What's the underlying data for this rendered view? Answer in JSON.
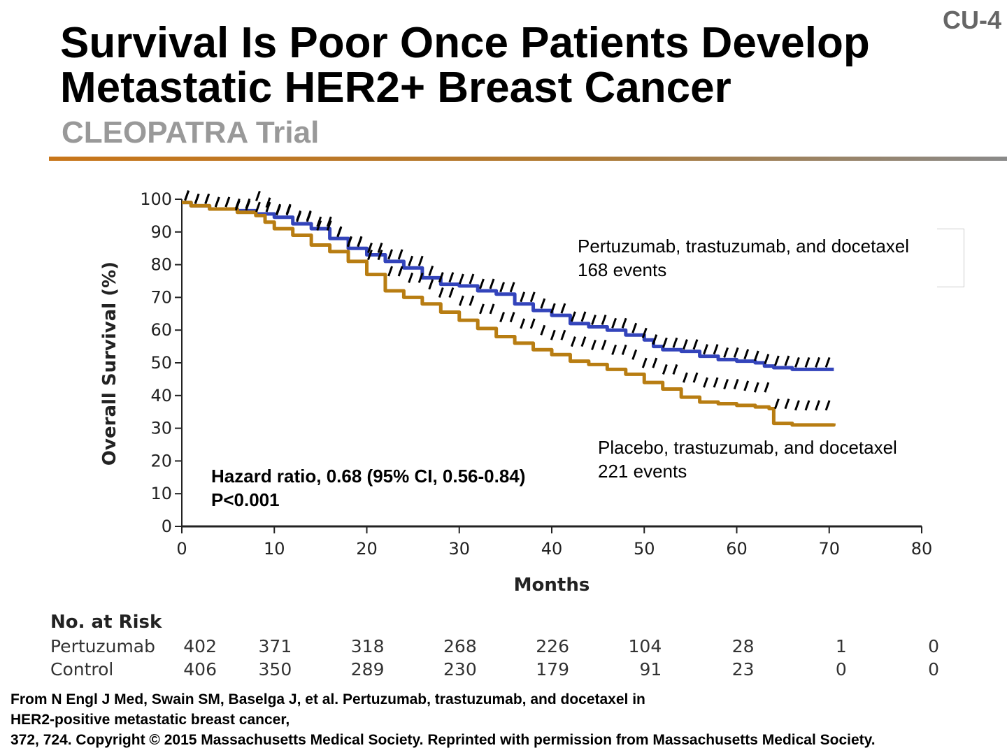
{
  "slide_id": "CU-4",
  "title_lines": [
    "Survival Is Poor Once Patients Develop",
    "Metastatic HER2+ Breast Cancer"
  ],
  "subtitle": "CLEOPATRA Trial",
  "chart_data": {
    "type": "line",
    "xlabel": "Months",
    "ylabel": "Overall Survival (%)",
    "xlim": [
      0,
      80
    ],
    "ylim": [
      0,
      100
    ],
    "x_ticks": [
      0,
      10,
      20,
      30,
      40,
      50,
      60,
      70,
      80
    ],
    "y_ticks": [
      0,
      10,
      20,
      30,
      40,
      50,
      60,
      70,
      80,
      90,
      100
    ],
    "grid": false,
    "series": [
      {
        "label_lines": [
          "Pertuzumab, trastuzumab, and docetaxel",
          "168 events"
        ],
        "color": "#3344bb",
        "x": [
          0,
          1,
          3,
          6,
          8,
          10,
          12,
          14,
          16,
          18,
          20,
          22,
          24,
          26,
          28,
          30,
          32,
          34,
          36,
          38,
          40,
          42,
          44,
          46,
          48,
          50,
          51,
          52,
          54,
          56,
          58,
          60,
          62,
          63,
          64,
          66,
          68,
          70.5
        ],
        "y": [
          99,
          98,
          97,
          96.5,
          95.5,
          94.5,
          92.5,
          91,
          88,
          85,
          83,
          81,
          79,
          76,
          74,
          73.5,
          72,
          71,
          68,
          66,
          64.5,
          62,
          61,
          60,
          58.5,
          57,
          55,
          54,
          53.5,
          52,
          51,
          50.5,
          50,
          49,
          48.5,
          48,
          48,
          48
        ]
      },
      {
        "label_lines": [
          "Placebo, trastuzumab, and docetaxel",
          "221 events"
        ],
        "color": "#b87d12",
        "x": [
          0,
          1,
          3,
          6,
          8,
          9,
          10,
          12,
          14,
          16,
          18,
          20,
          22,
          24,
          26,
          28,
          30,
          32,
          34,
          36,
          38,
          40,
          42,
          44,
          46,
          48,
          50,
          52,
          54,
          56,
          58,
          60,
          62,
          63.5,
          64,
          66,
          68,
          70.5
        ],
        "y": [
          99,
          98,
          97,
          96,
          95,
          93,
          91,
          89,
          86,
          84,
          81,
          77,
          72,
          70,
          68,
          65.5,
          63,
          60.5,
          58,
          56,
          54,
          52.5,
          50.5,
          49.5,
          48,
          46.5,
          44,
          42,
          39.5,
          38,
          37.5,
          37,
          36.5,
          36,
          31.5,
          31,
          31,
          31.5
        ]
      }
    ],
    "annotations": [
      "Hazard ratio, 0.68 (95% CI, 0.56-0.84)",
      "P<0.001"
    ]
  },
  "risk_table": {
    "title": "No. at Risk",
    "months": [
      0,
      10,
      20,
      30,
      40,
      50,
      60,
      70,
      80
    ],
    "rows": [
      {
        "label": "Pertuzumab",
        "values": [
          "402",
          "371",
          "318",
          "268",
          "226",
          "104",
          "28",
          "1",
          "0"
        ]
      },
      {
        "label": "Control",
        "values": [
          "406",
          "350",
          "289",
          "230",
          "179",
          "91",
          "23",
          "0",
          "0"
        ]
      }
    ]
  },
  "footer_lines": [
    "From N Engl J Med, Swain SM, Baselga J, et al. Pertuzumab, trastuzumab, and docetaxel in",
    "HER2-positive metastatic breast cancer,",
    "372, 724. Copyright © 2015 Massachusetts Medical Society. Reprinted with permission from Massachusetts Medical Society."
  ]
}
